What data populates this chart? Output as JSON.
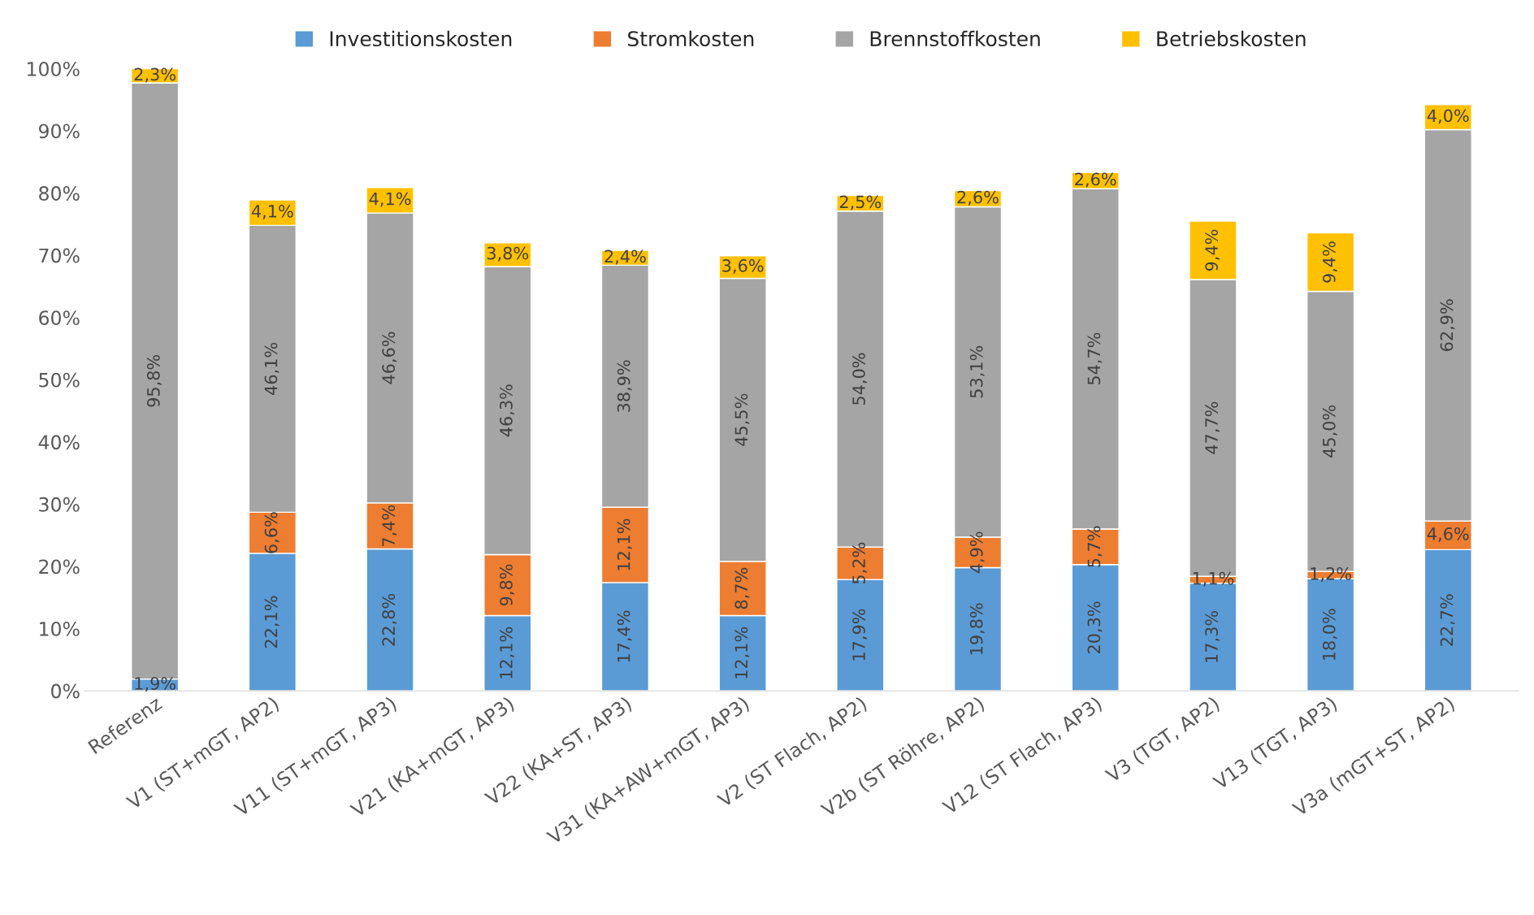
{
  "chart_data": {
    "type": "bar",
    "stacked": true,
    "categories": [
      "Referenz",
      "V1 (ST+mGT, AP2)",
      "V11 (ST+mGT, AP3)",
      "V21 (KA+mGT, AP3)",
      "V22 (KA+ST, AP3)",
      "V31 (KA+AW+mGT, AP3)",
      "V2 (ST Flach, AP2)",
      "V2b (ST Röhre, AP2)",
      "V12 (ST Flach, AP3)",
      "V3 (TGT, AP2)",
      "V13 (TGT, AP3)",
      "V3a (mGT+ST, AP2)"
    ],
    "series": [
      {
        "name": "Investitionskosten",
        "color": "#5b9bd5",
        "values": [
          1.9,
          22.1,
          22.8,
          12.1,
          17.4,
          12.1,
          17.9,
          19.8,
          20.3,
          17.3,
          18.0,
          22.7
        ],
        "value_labels": [
          "1,9%",
          "22,1%",
          "22,8%",
          "12,1%",
          "17,4%",
          "12,1%",
          "17,9%",
          "19,8%",
          "20,3%",
          "17,3%",
          "18,0%",
          "22,7%"
        ]
      },
      {
        "name": "Stromkosten",
        "color": "#ed7d31",
        "values": [
          null,
          6.6,
          7.4,
          9.8,
          12.1,
          8.7,
          5.2,
          4.9,
          5.7,
          1.1,
          1.2,
          4.6
        ],
        "value_labels": [
          null,
          "6,6%",
          "7,4%",
          "9,8%",
          "12,1%",
          "8,7%",
          "5,2%",
          "4,9%",
          "5,7%",
          "1,1%",
          "1,2%",
          "4,6%"
        ]
      },
      {
        "name": "Brennstoffkosten",
        "color": "#a5a5a5",
        "values": [
          95.8,
          46.1,
          46.6,
          46.3,
          38.9,
          45.5,
          54.0,
          53.1,
          54.7,
          47.7,
          45.0,
          62.9
        ],
        "value_labels": [
          "95,8%",
          "46,1%",
          "46,6%",
          "46,3%",
          "38,9%",
          "45,5%",
          "54,0%",
          "53,1%",
          "54,7%",
          "47,7%",
          "45,0%",
          "62,9%"
        ]
      },
      {
        "name": "Betriebskosten",
        "color": "#ffc000",
        "values": [
          2.3,
          4.1,
          4.1,
          3.8,
          2.4,
          3.6,
          2.5,
          2.6,
          2.6,
          9.4,
          9.4,
          4.0
        ],
        "value_labels": [
          "2,3%",
          "4,1%",
          "4,1%",
          "3,8%",
          "2,4%",
          "3,6%",
          "2,5%",
          "2,6%",
          "2,6%",
          "9,4%",
          "9,4%",
          "4,0%"
        ]
      }
    ],
    "ylim": [
      0,
      100
    ],
    "yticks": [
      {
        "value": 0,
        "label": "0%"
      },
      {
        "value": 10,
        "label": "10%"
      },
      {
        "value": 20,
        "label": "20%"
      },
      {
        "value": 30,
        "label": "30%"
      },
      {
        "value": 40,
        "label": "40%"
      },
      {
        "value": 50,
        "label": "50%"
      },
      {
        "value": 60,
        "label": "60%"
      },
      {
        "value": 70,
        "label": "70%"
      },
      {
        "value": 80,
        "label": "80%"
      },
      {
        "value": 90,
        "label": "90%"
      },
      {
        "value": 100,
        "label": "100%"
      }
    ],
    "legend": "top",
    "grid": false
  }
}
